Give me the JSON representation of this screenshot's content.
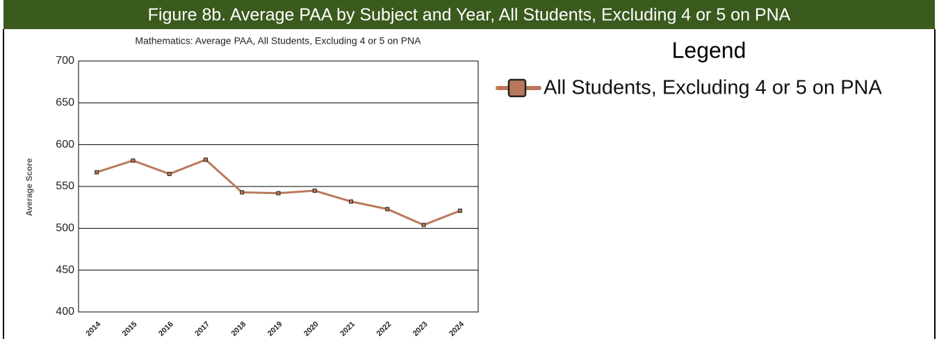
{
  "header": {
    "title": "Figure 8b. Average PAA by Subject and Year, All Students, Excluding 4 or 5 on PNA"
  },
  "chart_data": {
    "type": "line",
    "title": "Mathematics: Average PAA, All Students, Excluding 4 or 5 on PNA",
    "y_label": "Average Score",
    "legend_title": "Legend",
    "categories": [
      "2014",
      "2015",
      "2016",
      "2017",
      "2018",
      "2019",
      "2020",
      "2021",
      "2022",
      "2023",
      "2024"
    ],
    "series": [
      {
        "name": "All Students, Excluding 4 or 5 on PNA",
        "color": "#b9785a",
        "values": [
          567,
          581,
          565,
          582,
          543,
          542,
          545,
          532,
          523,
          504,
          521
        ]
      }
    ],
    "ylim": [
      400,
      700
    ],
    "yticks": [
      400,
      450,
      500,
      550,
      600,
      650,
      700
    ],
    "grid": true
  }
}
